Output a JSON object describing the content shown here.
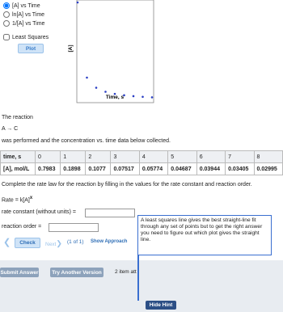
{
  "plot_options": {
    "radios": [
      "[A] vs Time",
      "ln[A] vs Time",
      "1/[A] vs Time"
    ],
    "selected": 0,
    "checkbox": "Least Squares",
    "button": "Plot"
  },
  "plot": {
    "y_label": "[A]",
    "x_label": "Time, s"
  },
  "problem": {
    "intro": "The reaction",
    "reaction": "A → C",
    "after": "was performed and the concentration vs. time data below collected.",
    "table": {
      "row_labels": [
        "time, s",
        "[A], mol/L"
      ],
      "times": [
        0,
        1,
        2,
        3,
        4,
        5,
        6,
        7,
        8
      ],
      "concentrations": [
        0.7983,
        0.1898,
        0.1077,
        0.07517,
        0.05774,
        0.04687,
        0.03944,
        0.03405,
        0.02995
      ]
    },
    "instruction": "Complete the rate law for the reaction by filling in the values for the rate constant and reaction order.",
    "rate_law": "Rate = k[A]",
    "rate_exponent": "x",
    "rate_constant_label": "rate constant (without units) =",
    "order_label": "reaction order ="
  },
  "nav": {
    "check": "Check",
    "next": "Next",
    "counter": "(1 of 1)",
    "approach": "Show Approach"
  },
  "hint": "A least squares line gives the best straight-line fit through any set of points but to get the right answer you need to figure out which plot gives the straight line.",
  "footer": {
    "submit": "Submit Answer",
    "try": "Try Another Version",
    "attempts": "2 item att",
    "hide_hint": "Hide Hint"
  }
}
